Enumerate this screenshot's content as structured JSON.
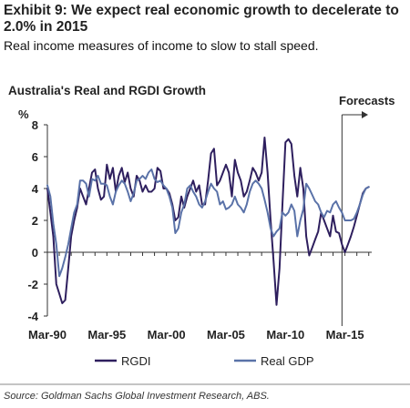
{
  "header": {
    "title": "Exhibit 9: We expect real economic growth to decelerate to 2.0% in 2015",
    "subtitle": "Real income measures of income to slow to stall speed."
  },
  "chart_data": {
    "type": "line",
    "title": "Australia's Real and RGDI Growth",
    "ylabel": "%",
    "xlabel": "",
    "xlim": [
      1990.0,
      2017.25
    ],
    "ylim": [
      -4,
      8
    ],
    "y_ticks": [
      -4,
      -2,
      0,
      2,
      4,
      6,
      8
    ],
    "x_ticks": [
      {
        "label": "Mar-90",
        "x": 1990.0
      },
      {
        "label": "Mar-95",
        "x": 1995.0
      },
      {
        "label": "Mar-00",
        "x": 2000.0
      },
      {
        "label": "Mar-05",
        "x": 2005.0
      },
      {
        "label": "Mar-10",
        "x": 2010.0
      },
      {
        "label": "Mar-15",
        "x": 2015.0
      }
    ],
    "forecast": {
      "label": "Forecasts",
      "x": 2014.75
    },
    "grid": false,
    "legend_position": "bottom",
    "series": [
      {
        "name": "RGDI",
        "color": "#2e1f5e",
        "points": [
          [
            1990.0,
            4.0
          ],
          [
            1990.25,
            2.5
          ],
          [
            1990.5,
            1.0
          ],
          [
            1990.75,
            -2.0
          ],
          [
            1991.0,
            -2.6
          ],
          [
            1991.25,
            -3.2
          ],
          [
            1991.5,
            -3.0
          ],
          [
            1991.75,
            -1.0
          ],
          [
            1992.0,
            1.0
          ],
          [
            1992.25,
            2.0
          ],
          [
            1992.5,
            2.8
          ],
          [
            1992.75,
            4.0
          ],
          [
            1993.0,
            3.5
          ],
          [
            1993.25,
            3.0
          ],
          [
            1993.5,
            4.0
          ],
          [
            1993.75,
            5.0
          ],
          [
            1994.0,
            5.2
          ],
          [
            1994.25,
            4.0
          ],
          [
            1994.5,
            3.3
          ],
          [
            1994.75,
            3.5
          ],
          [
            1995.0,
            5.5
          ],
          [
            1995.25,
            4.6
          ],
          [
            1995.5,
            5.3
          ],
          [
            1995.75,
            3.8
          ],
          [
            1996.0,
            4.8
          ],
          [
            1996.25,
            5.3
          ],
          [
            1996.5,
            4.4
          ],
          [
            1996.75,
            5.0
          ],
          [
            1997.0,
            4.0
          ],
          [
            1997.25,
            3.5
          ],
          [
            1997.5,
            4.8
          ],
          [
            1997.75,
            4.5
          ],
          [
            1998.0,
            3.8
          ],
          [
            1998.25,
            4.2
          ],
          [
            1998.5,
            3.8
          ],
          [
            1998.75,
            3.8
          ],
          [
            1999.0,
            4.0
          ],
          [
            1999.25,
            5.3
          ],
          [
            1999.5,
            5.1
          ],
          [
            1999.75,
            4.0
          ],
          [
            2000.0,
            4.0
          ],
          [
            2000.25,
            3.7
          ],
          [
            2000.5,
            3.0
          ],
          [
            2000.75,
            2.0
          ],
          [
            2001.0,
            2.2
          ],
          [
            2001.25,
            3.5
          ],
          [
            2001.5,
            2.8
          ],
          [
            2001.75,
            3.5
          ],
          [
            2002.0,
            4.0
          ],
          [
            2002.25,
            4.5
          ],
          [
            2002.5,
            3.8
          ],
          [
            2002.75,
            4.2
          ],
          [
            2003.0,
            3.0
          ],
          [
            2003.25,
            3.0
          ],
          [
            2003.5,
            4.5
          ],
          [
            2003.75,
            6.2
          ],
          [
            2004.0,
            6.5
          ],
          [
            2004.25,
            4.2
          ],
          [
            2004.5,
            4.5
          ],
          [
            2004.75,
            5.0
          ],
          [
            2005.0,
            5.5
          ],
          [
            2005.25,
            5.0
          ],
          [
            2005.5,
            3.5
          ],
          [
            2005.75,
            5.8
          ],
          [
            2006.0,
            5.0
          ],
          [
            2006.25,
            4.5
          ],
          [
            2006.5,
            3.5
          ],
          [
            2006.75,
            3.8
          ],
          [
            2007.0,
            4.5
          ],
          [
            2007.25,
            5.3
          ],
          [
            2007.5,
            5.0
          ],
          [
            2007.75,
            4.5
          ],
          [
            2008.0,
            5.0
          ],
          [
            2008.25,
            7.2
          ],
          [
            2008.5,
            5.0
          ],
          [
            2008.75,
            2.0
          ],
          [
            2009.0,
            -0.5
          ],
          [
            2009.25,
            -3.3
          ],
          [
            2009.5,
            -1.0
          ],
          [
            2009.75,
            3.0
          ],
          [
            2010.0,
            6.9
          ],
          [
            2010.25,
            7.1
          ],
          [
            2010.5,
            6.8
          ],
          [
            2010.75,
            4.8
          ],
          [
            2011.0,
            3.5
          ],
          [
            2011.25,
            5.3
          ],
          [
            2011.5,
            4.0
          ],
          [
            2011.75,
            1.0
          ],
          [
            2012.0,
            -0.2
          ],
          [
            2012.25,
            0.3
          ],
          [
            2012.5,
            0.8
          ],
          [
            2012.75,
            1.3
          ],
          [
            2013.0,
            2.5
          ],
          [
            2013.25,
            2.0
          ],
          [
            2013.5,
            1.5
          ],
          [
            2013.75,
            1.0
          ],
          [
            2014.0,
            2.3
          ],
          [
            2014.25,
            1.3
          ],
          [
            2014.5,
            1.2
          ],
          [
            2014.75,
            0.5
          ],
          [
            2015.0,
            0.0
          ],
          [
            2015.25,
            0.5
          ],
          [
            2015.5,
            1.0
          ],
          [
            2015.75,
            1.6
          ],
          [
            2016.0,
            2.3
          ],
          [
            2016.25,
            3.0
          ],
          [
            2016.5,
            3.7
          ],
          [
            2016.75,
            4.0
          ],
          [
            2017.0,
            4.1
          ]
        ]
      },
      {
        "name": "Real GDP",
        "color": "#5a72a8",
        "points": [
          [
            1990.0,
            4.2
          ],
          [
            1990.25,
            3.5
          ],
          [
            1990.5,
            1.8
          ],
          [
            1990.75,
            0.5
          ],
          [
            1991.0,
            -1.5
          ],
          [
            1991.25,
            -1.0
          ],
          [
            1991.5,
            -0.3
          ],
          [
            1991.75,
            0.5
          ],
          [
            1992.0,
            1.5
          ],
          [
            1992.25,
            2.5
          ],
          [
            1992.5,
            3.0
          ],
          [
            1992.75,
            4.5
          ],
          [
            1993.0,
            4.5
          ],
          [
            1993.25,
            4.3
          ],
          [
            1993.5,
            3.5
          ],
          [
            1993.75,
            4.6
          ],
          [
            1994.0,
            4.5
          ],
          [
            1994.25,
            4.8
          ],
          [
            1994.5,
            4.3
          ],
          [
            1994.75,
            4.3
          ],
          [
            1995.0,
            4.2
          ],
          [
            1995.25,
            3.5
          ],
          [
            1995.5,
            3.0
          ],
          [
            1995.75,
            3.8
          ],
          [
            1996.0,
            4.2
          ],
          [
            1996.25,
            4.5
          ],
          [
            1996.5,
            4.3
          ],
          [
            1996.75,
            3.8
          ],
          [
            1997.0,
            3.2
          ],
          [
            1997.25,
            3.7
          ],
          [
            1997.5,
            4.5
          ],
          [
            1997.75,
            4.6
          ],
          [
            1998.0,
            4.8
          ],
          [
            1998.25,
            4.6
          ],
          [
            1998.5,
            5.0
          ],
          [
            1998.75,
            5.2
          ],
          [
            1999.0,
            4.6
          ],
          [
            1999.25,
            4.4
          ],
          [
            1999.5,
            4.5
          ],
          [
            1999.75,
            4.2
          ],
          [
            2000.0,
            4.0
          ],
          [
            2000.25,
            3.5
          ],
          [
            2000.5,
            2.8
          ],
          [
            2000.75,
            1.2
          ],
          [
            2001.0,
            1.5
          ],
          [
            2001.25,
            2.5
          ],
          [
            2001.5,
            3.0
          ],
          [
            2001.75,
            4.0
          ],
          [
            2002.0,
            4.2
          ],
          [
            2002.25,
            3.8
          ],
          [
            2002.5,
            3.5
          ],
          [
            2002.75,
            3.0
          ],
          [
            2003.0,
            2.8
          ],
          [
            2003.25,
            3.2
          ],
          [
            2003.5,
            3.8
          ],
          [
            2003.75,
            4.3
          ],
          [
            2004.0,
            4.0
          ],
          [
            2004.25,
            3.8
          ],
          [
            2004.5,
            3.0
          ],
          [
            2004.75,
            3.2
          ],
          [
            2005.0,
            2.7
          ],
          [
            2005.25,
            2.8
          ],
          [
            2005.5,
            3.0
          ],
          [
            2005.75,
            3.5
          ],
          [
            2006.0,
            3.0
          ],
          [
            2006.25,
            2.8
          ],
          [
            2006.5,
            2.5
          ],
          [
            2006.75,
            3.0
          ],
          [
            2007.0,
            3.8
          ],
          [
            2007.25,
            4.3
          ],
          [
            2007.5,
            4.5
          ],
          [
            2007.75,
            4.3
          ],
          [
            2008.0,
            4.0
          ],
          [
            2008.25,
            3.3
          ],
          [
            2008.5,
            2.5
          ],
          [
            2008.75,
            1.5
          ],
          [
            2009.0,
            1.0
          ],
          [
            2009.25,
            1.3
          ],
          [
            2009.5,
            1.5
          ],
          [
            2009.75,
            2.5
          ],
          [
            2010.0,
            2.3
          ],
          [
            2010.25,
            2.5
          ],
          [
            2010.5,
            3.0
          ],
          [
            2010.75,
            2.6
          ],
          [
            2011.0,
            1.0
          ],
          [
            2011.25,
            2.0
          ],
          [
            2011.5,
            2.7
          ],
          [
            2011.75,
            4.3
          ],
          [
            2012.0,
            4.0
          ],
          [
            2012.25,
            3.6
          ],
          [
            2012.5,
            3.2
          ],
          [
            2012.75,
            3.0
          ],
          [
            2013.0,
            2.5
          ],
          [
            2013.25,
            2.2
          ],
          [
            2013.5,
            2.6
          ],
          [
            2013.75,
            2.5
          ],
          [
            2014.0,
            3.0
          ],
          [
            2014.25,
            3.2
          ],
          [
            2014.5,
            2.8
          ],
          [
            2014.75,
            2.5
          ],
          [
            2015.0,
            2.0
          ],
          [
            2015.25,
            2.0
          ],
          [
            2015.5,
            2.0
          ],
          [
            2015.75,
            2.1
          ],
          [
            2016.0,
            2.5
          ],
          [
            2016.25,
            3.0
          ],
          [
            2016.5,
            3.6
          ],
          [
            2016.75,
            4.0
          ],
          [
            2017.0,
            4.1
          ]
        ]
      }
    ]
  },
  "footer": {
    "source": "Source: Goldman Sachs Global Investment Research, ABS."
  }
}
